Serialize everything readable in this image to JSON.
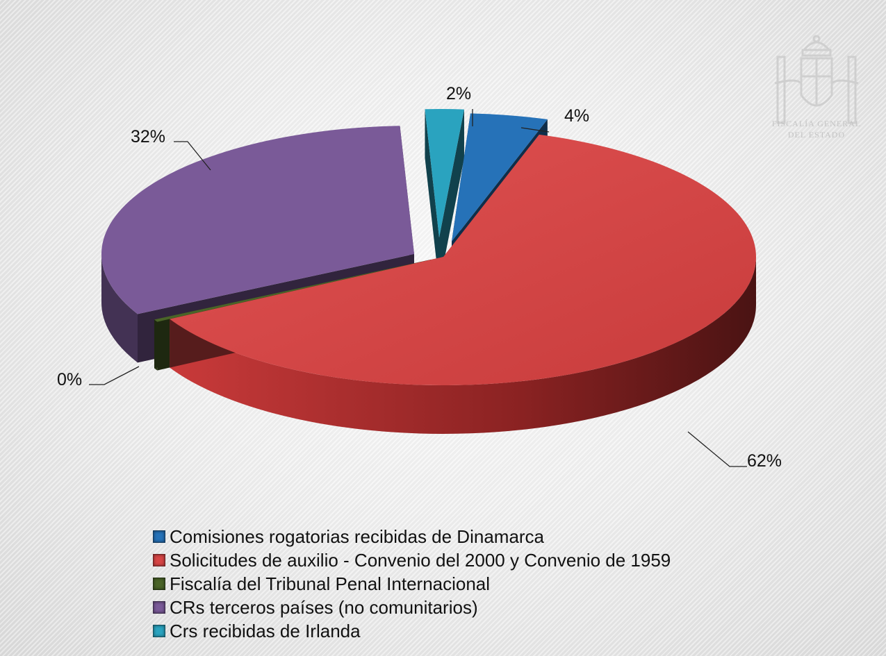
{
  "watermark": {
    "line1": "FISCALÍA GENERAL",
    "line2": "DEL ESTADO"
  },
  "chart_data": {
    "type": "pie",
    "title": "",
    "slices": [
      {
        "name": "Comisiones rogatorias recibidas de Dinamarca",
        "value": 4,
        "label": "4%",
        "color": "#2672b8"
      },
      {
        "name": "Solicitudes de auxilio - Convenio del 2000 y Convenio de 1959",
        "value": 62,
        "label": "62%",
        "color": "#d64545"
      },
      {
        "name": "Fiscalía del Tribunal Penal Internacional",
        "value": 0,
        "label": "0%",
        "color": "#4a6428"
      },
      {
        "name": "CRs terceros países (no comunitarios)",
        "value": 32,
        "label": "32%",
        "color": "#7a5a98"
      },
      {
        "name": "Crs recibidas de Irlanda",
        "value": 2,
        "label": "2%",
        "color": "#2aa3bf"
      }
    ],
    "legend_position": "bottom",
    "view": "3d-exploded"
  }
}
